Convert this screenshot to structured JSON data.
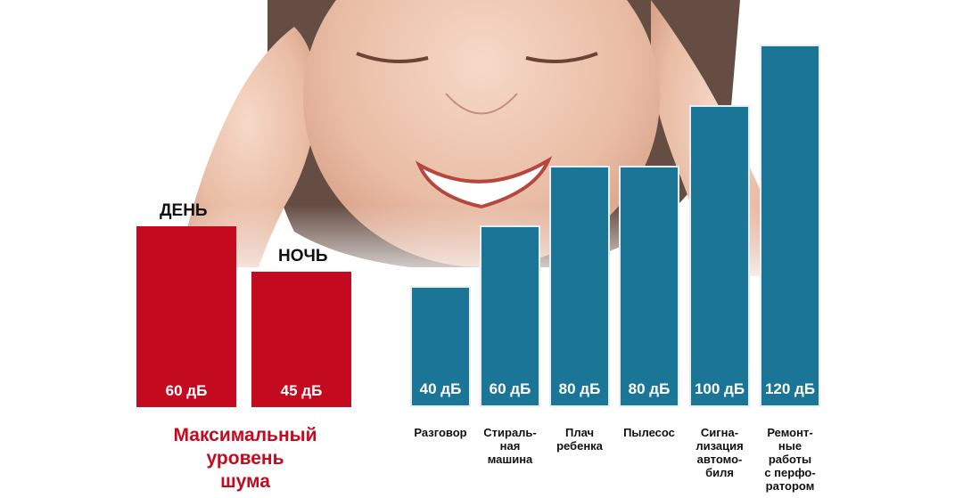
{
  "chart_data": [
    {
      "type": "bar",
      "title": "Максимальный\nуровень\nшума",
      "categories": [
        "ДЕНЬ",
        "НОЧЬ"
      ],
      "values": [
        60,
        45
      ],
      "value_labels": [
        "60 дБ",
        "45 дБ"
      ],
      "unit": "дБ",
      "color": "#c40a1e"
    },
    {
      "type": "bar",
      "categories": [
        "Разговор",
        "Стираль-\nная\nмашина",
        "Плач\nребенка",
        "Пылесос",
        "Сигна-\nлизация\nавтомо-\nбиля",
        "Ремонт-\nные\nработы\nс перфо-\nратором"
      ],
      "values": [
        40,
        60,
        80,
        80,
        100,
        120
      ],
      "value_labels": [
        "40 дБ",
        "60 дБ",
        "80 дБ",
        "80 дБ",
        "100 дБ",
        "120 дБ"
      ],
      "unit": "дБ",
      "color": "#1b7596"
    }
  ]
}
